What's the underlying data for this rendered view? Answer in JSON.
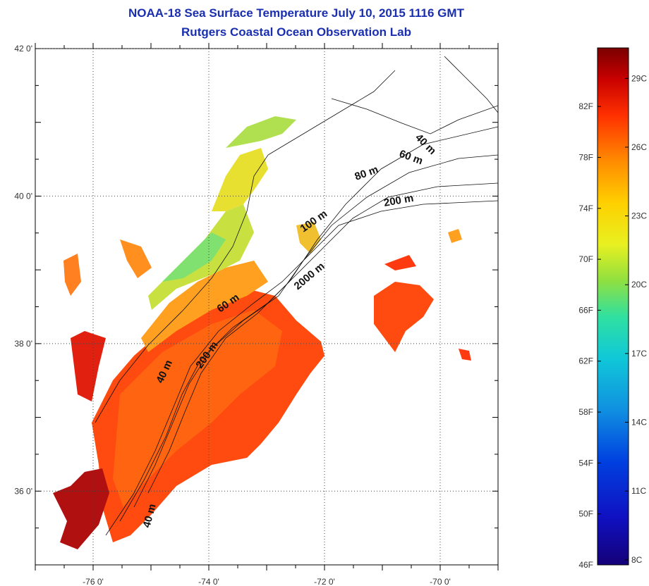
{
  "title": "NOAA-18 Sea Surface Temperature July 10, 2015 1116 GMT",
  "subtitle": "Rutgers Coastal Ocean Observation Lab",
  "map": {
    "lat_labels": [
      {
        "value": 42,
        "label": "42 0'"
      },
      {
        "value": 40,
        "label": "40 0'"
      },
      {
        "value": 38,
        "label": "38 0'"
      },
      {
        "value": 36,
        "label": "36 0'"
      }
    ],
    "lon_labels": [
      {
        "value": -76,
        "label": "-76 0'"
      },
      {
        "value": -74,
        "label": "-74 0'"
      },
      {
        "value": -72,
        "label": "-72 0'"
      },
      {
        "value": -70,
        "label": "-70 0'"
      }
    ],
    "lat_range": [
      35.0,
      42.0
    ],
    "lon_range": [
      -77.0,
      -69.0
    ],
    "isobath_labels": [
      "40 m",
      "60 m",
      "80 m",
      "200 m",
      "100 m",
      "2000 m",
      "60 m",
      "200 m",
      "40 m",
      "40 m"
    ]
  },
  "colorbar": {
    "fahrenheit_labels": [
      "82F",
      "78F",
      "74F",
      "70F",
      "66F",
      "62F",
      "58F",
      "54F",
      "50F",
      "46F"
    ],
    "celsius_labels": [
      "29C",
      "26C",
      "23C",
      "20C",
      "17C",
      "14C",
      "11C",
      "8C"
    ],
    "colors": [
      "#7a0000",
      "#c80000",
      "#ff3000",
      "#ff8c00",
      "#ffd000",
      "#e8f020",
      "#90e040",
      "#30e0a0",
      "#10c8d8",
      "#1090e0",
      "#0040e0",
      "#1010c0",
      "#140078"
    ]
  }
}
